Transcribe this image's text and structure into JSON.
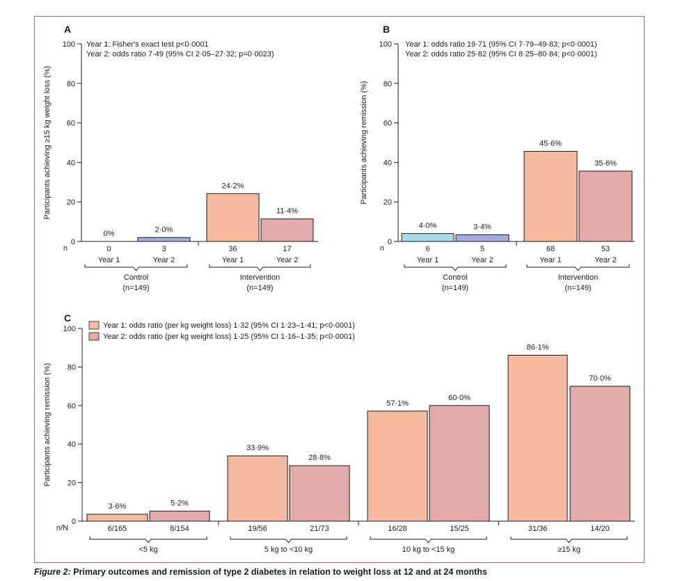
{
  "caption": {
    "label": "Figure 2:",
    "text": "Primary outcomes and remission of type 2 diabetes in relation to weight loss at 12 and at 24 months"
  },
  "colors": {
    "frame": "#c8557a",
    "control_year1": "#a8dbe6",
    "control_year2": "#a6acd8",
    "intervention_year1": "#f6baa1",
    "intervention_year2": "#e2aaa8"
  },
  "chart_data": [
    {
      "panel": "A",
      "type": "bar",
      "ylabel": "Participants achieving ≥15 kg weight loss (%)",
      "ylim": [
        0,
        100
      ],
      "yticks": [
        0,
        20,
        40,
        60,
        80,
        100
      ],
      "row_label": "n",
      "annotations": [
        "Year 1: Fisher's exact test p<0·0001",
        "Year 2: odds ratio 7·49 (95% CI 2·05–27·32; p=0·0023)"
      ],
      "groups": [
        {
          "name": "Control",
          "n_label": "(n=149)",
          "bars": [
            {
              "label": "Year 1",
              "value": 0,
              "value_label": "0%",
              "n": "0",
              "color": "#a8dbe6"
            },
            {
              "label": "Year 2",
              "value": 2.0,
              "value_label": "2·0%",
              "n": "3",
              "color": "#a6acd8"
            }
          ]
        },
        {
          "name": "Intervention",
          "n_label": "(n=149)",
          "bars": [
            {
              "label": "Year 1",
              "value": 24.2,
              "value_label": "24·2%",
              "n": "36",
              "color": "#f6baa1"
            },
            {
              "label": "Year 2",
              "value": 11.4,
              "value_label": "11·4%",
              "n": "17",
              "color": "#e2aaa8"
            }
          ]
        }
      ]
    },
    {
      "panel": "B",
      "type": "bar",
      "ylabel": "Participants achieving remission (%)",
      "ylim": [
        0,
        100
      ],
      "yticks": [
        0,
        20,
        40,
        60,
        80,
        100
      ],
      "row_label": "n",
      "annotations": [
        "Year 1: odds ratio 19·71 (95% CI 7·79–49·83; p<0·0001)",
        "Year 2: odds ratio 25·82 (95% CI 8·25–80·84; p<0·0001)"
      ],
      "groups": [
        {
          "name": "Control",
          "n_label": "(n=149)",
          "bars": [
            {
              "label": "Year 1",
              "value": 4.0,
              "value_label": "4·0%",
              "n": "6",
              "color": "#a8dbe6"
            },
            {
              "label": "Year 2",
              "value": 3.4,
              "value_label": "3·4%",
              "n": "5",
              "color": "#a6acd8"
            }
          ]
        },
        {
          "name": "Intervention",
          "n_label": "(n=149)",
          "bars": [
            {
              "label": "Year 1",
              "value": 45.6,
              "value_label": "45·6%",
              "n": "68",
              "color": "#f6baa1"
            },
            {
              "label": "Year 2",
              "value": 35.6,
              "value_label": "35·6%",
              "n": "53",
              "color": "#e2aaa8"
            }
          ]
        }
      ]
    },
    {
      "panel": "C",
      "type": "bar",
      "ylabel": "Participants achieving remission (%)",
      "ylim": [
        0,
        100
      ],
      "yticks": [
        0,
        20,
        40,
        60,
        80,
        100
      ],
      "row_label": "n/N",
      "legend": [
        {
          "label": "Year 1: odds ratio (per kg weight loss) 1·32 (95% CI 1·23–1·41; p<0·0001)",
          "color": "#f6baa1"
        },
        {
          "label": "Year 2: odds ratio (per kg weight loss) 1·25 (95% CI 1·16–1·35; p<0·0001)",
          "color": "#e2aaa8"
        }
      ],
      "groups": [
        {
          "name": "<5 kg",
          "bars": [
            {
              "value": 3.6,
              "value_label": "3·6%",
              "n": "6/165",
              "color": "#f6baa1"
            },
            {
              "value": 5.2,
              "value_label": "5·2%",
              "n": "8/154",
              "color": "#e2aaa8"
            }
          ]
        },
        {
          "name": "5 kg to <10 kg",
          "bars": [
            {
              "value": 33.9,
              "value_label": "33·9%",
              "n": "19/56",
              "color": "#f6baa1"
            },
            {
              "value": 28.8,
              "value_label": "28·8%",
              "n": "21/73",
              "color": "#e2aaa8"
            }
          ]
        },
        {
          "name": "10 kg to <15 kg",
          "bars": [
            {
              "value": 57.1,
              "value_label": "57·1%",
              "n": "16/28",
              "color": "#f6baa1"
            },
            {
              "value": 60.0,
              "value_label": "60·0%",
              "n": "15/25",
              "color": "#e2aaa8"
            }
          ]
        },
        {
          "name": "≥15 kg",
          "bars": [
            {
              "value": 86.1,
              "value_label": "86·1%",
              "n": "31/36",
              "color": "#f6baa1"
            },
            {
              "value": 70.0,
              "value_label": "70·0%",
              "n": "14/20",
              "color": "#e2aaa8"
            }
          ]
        }
      ]
    }
  ]
}
